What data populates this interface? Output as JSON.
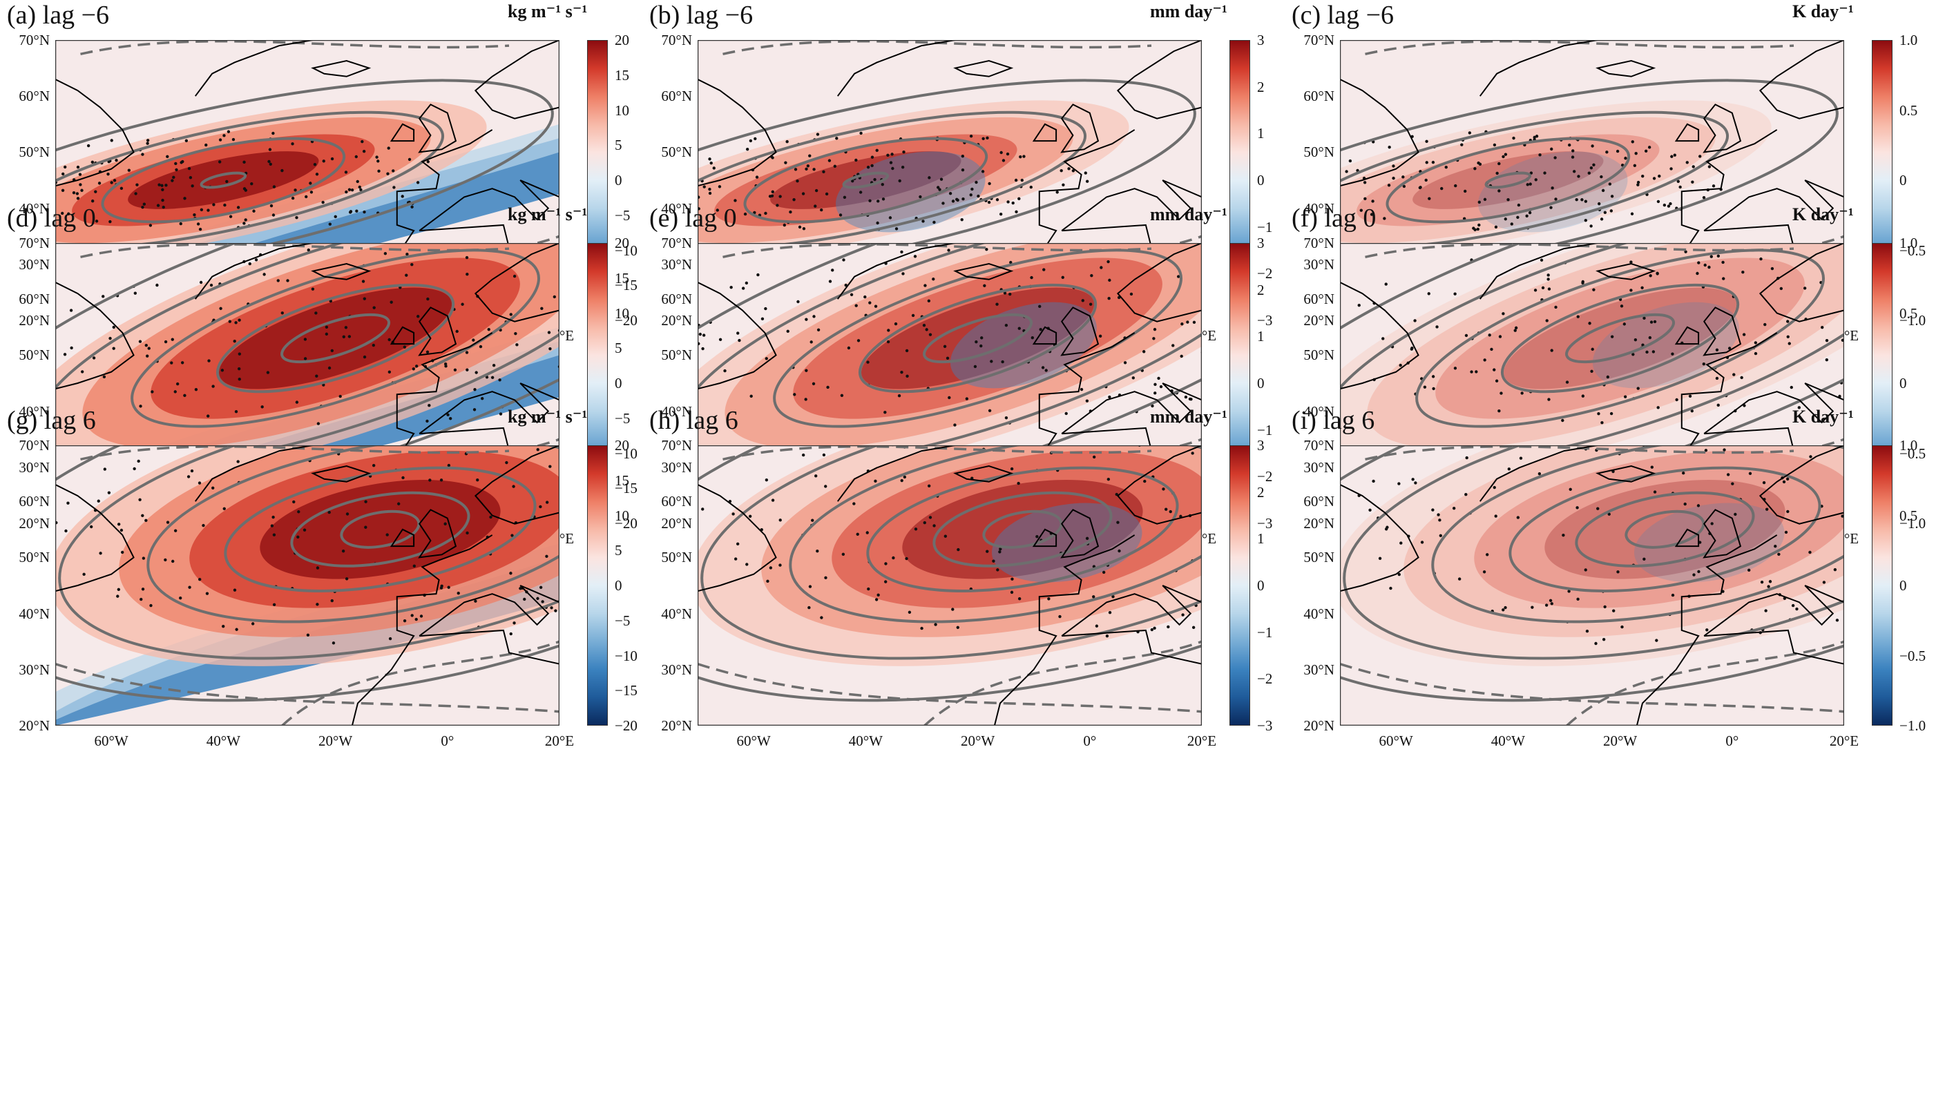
{
  "figure": {
    "lat_labels": [
      "70°N",
      "60°N",
      "50°N",
      "40°N",
      "30°N",
      "20°N"
    ],
    "lon_labels": [
      "60°W",
      "40°W",
      "20°W",
      "0°",
      "20°E"
    ],
    "lon_range": [
      -70,
      20
    ],
    "lat_range": [
      20,
      70
    ],
    "contour_color": "#6e6e6e"
  },
  "colorbars": {
    "flux": {
      "unit": "kg m⁻¹ s⁻¹",
      "ticks": [
        "20",
        "15",
        "10",
        "5",
        "0",
        "−5",
        "−10",
        "−15",
        "−20"
      ]
    },
    "precip": {
      "unit": "mm day⁻¹",
      "ticks": [
        "3",
        "2",
        "1",
        "0",
        "−1",
        "−2",
        "−3"
      ]
    },
    "heating": {
      "unit": "K day⁻¹",
      "ticks": [
        "1.0",
        "0.5",
        "0",
        "−0.5",
        "−1.0"
      ]
    }
  },
  "panels": [
    {
      "title": "(a) lag −6",
      "var": "flux"
    },
    {
      "title": "(b) lag −6",
      "var": "precip"
    },
    {
      "title": "(c) lag −6",
      "var": "heating"
    },
    {
      "title": "(d) lag 0",
      "var": "flux"
    },
    {
      "title": "(e) lag 0",
      "var": "precip"
    },
    {
      "title": "(f) lag 0",
      "var": "heating"
    },
    {
      "title": "(g) lag 6",
      "var": "flux"
    },
    {
      "title": "(h) lag 6",
      "var": "precip"
    },
    {
      "title": "(i) lag 6",
      "var": "heating"
    }
  ],
  "colormap": [
    "#0a2a5e",
    "#1f5b9a",
    "#3b82bf",
    "#79aed6",
    "#b8d6ea",
    "#e3eff7",
    "#fbe4e0",
    "#f7b9a8",
    "#ee7f66",
    "#d33a2b",
    "#8c0c10"
  ]
}
